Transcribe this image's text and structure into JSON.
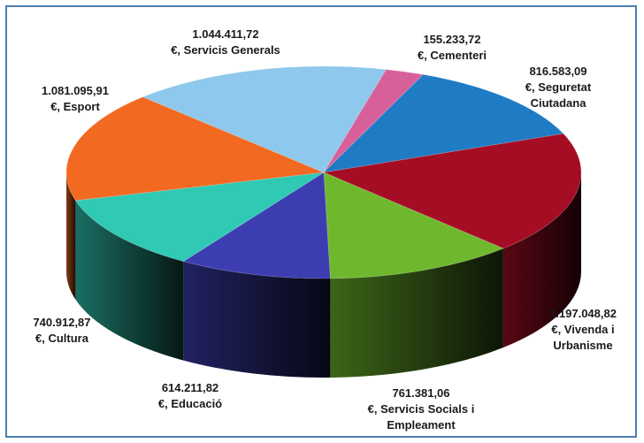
{
  "chart_data": {
    "type": "pie",
    "title": "",
    "three_d": true,
    "slices": [
      {
        "name": "Cementeri",
        "value": 155233.72,
        "color": "#d8609a",
        "label": [
          "155.233,72",
          "€, Cementeri"
        ]
      },
      {
        "name": "Seguretat Ciutadana",
        "value": 816583.09,
        "color": "#1f7bc4",
        "label": [
          "816.583,09",
          "€, Seguretat",
          "Ciutadana"
        ]
      },
      {
        "name": "Vivenda i Urbanisme",
        "value": 1197048.82,
        "color": "#a50d24",
        "label": [
          "1.197.048,82",
          "€, Vivenda i",
          "Urbanisme"
        ]
      },
      {
        "name": "Servicis Socials i Empleament",
        "value": 761381.06,
        "color": "#6fb82e",
        "label": [
          "761.381,06",
          "€, Servicis Socials i",
          "Empleament"
        ]
      },
      {
        "name": "Educació",
        "value": 614211.82,
        "color": "#3c3db0",
        "label": [
          "614.211,82",
          "€, Educació"
        ]
      },
      {
        "name": "Cultura",
        "value": 740912.87,
        "color": "#2fc9b4",
        "label": [
          "740.912,87",
          "€, Cultura"
        ]
      },
      {
        "name": "Esport",
        "value": 1081095.91,
        "color": "#f26a21",
        "label": [
          "1.081.095,91",
          "€, Esport"
        ]
      },
      {
        "name": "Servicis Generals",
        "value": 1044411.72,
        "color": "#8ec8ec",
        "label": [
          "1.044.411,72",
          "€, Servicis Generals"
        ]
      }
    ]
  }
}
